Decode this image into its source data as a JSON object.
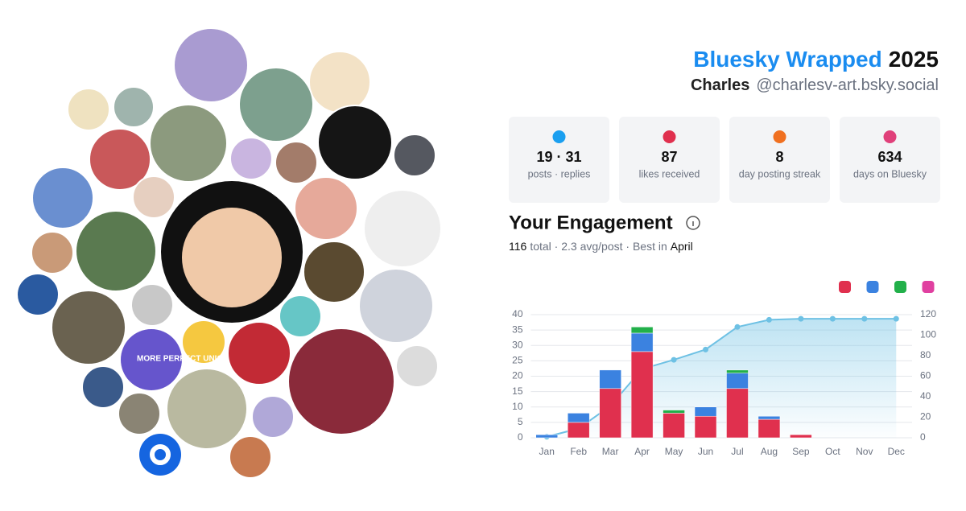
{
  "header": {
    "title_brand": "Bluesky Wrapped",
    "title_year": "2025",
    "name": "Charles",
    "handle": "@charlesv-art.bsky.social"
  },
  "avatar_label": "MORE PERFECT UNION",
  "stats": [
    {
      "value": "19 · 31",
      "label": "posts · replies"
    },
    {
      "value": "87",
      "label": "likes received"
    },
    {
      "value": "8",
      "label": "day posting streak"
    },
    {
      "value": "634",
      "label": "days on Bluesky"
    }
  ],
  "engagement": {
    "title": "Your Engagement",
    "total": "116",
    "middle": "total · 2.3 avg/post · Best in",
    "best": "April"
  },
  "chart_data": {
    "type": "bar",
    "stacked": true,
    "categories": [
      "Jan",
      "Feb",
      "Mar",
      "Apr",
      "May",
      "Jun",
      "Jul",
      "Aug",
      "Sep",
      "Oct",
      "Nov",
      "Dec"
    ],
    "series": [
      {
        "color": "#e0304e",
        "values": [
          0,
          5,
          16,
          28,
          8,
          7,
          16,
          6,
          1,
          0,
          0,
          0
        ]
      },
      {
        "color": "#3b82e0",
        "values": [
          1,
          3,
          6,
          6,
          0,
          3,
          5,
          1,
          0,
          0,
          0,
          0
        ]
      },
      {
        "color": "#22b04a",
        "values": [
          0,
          0,
          0,
          2,
          1,
          0,
          1,
          0,
          0,
          0,
          0,
          0
        ]
      },
      {
        "color": "#e040a0",
        "values": [
          0,
          0,
          0,
          0,
          0,
          0,
          0,
          0,
          0,
          0,
          0,
          0
        ]
      },
      {
        "type": "area",
        "axis": "y2",
        "color": "#6ec1e4",
        "values": [
          1,
          9,
          31,
          67,
          76,
          86,
          108,
          115,
          116,
          116,
          116,
          116
        ]
      }
    ],
    "ylim": [
      0,
      40
    ],
    "yticks": [
      0,
      5,
      10,
      15,
      20,
      25,
      30,
      35,
      40
    ],
    "y2lim": [
      0,
      120
    ],
    "y2ticks": [
      0,
      20,
      40,
      60,
      80,
      100,
      120
    ],
    "grid": true
  }
}
